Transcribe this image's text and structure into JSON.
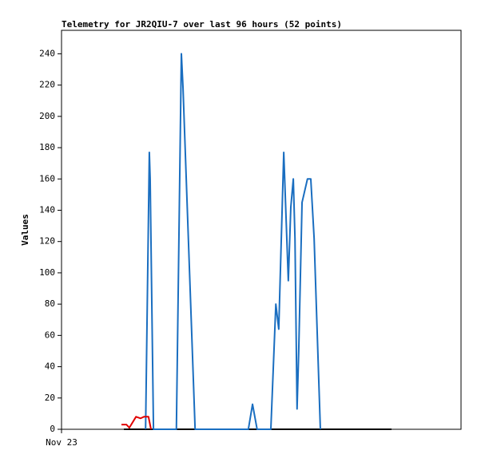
{
  "chart_data": {
    "type": "line",
    "title": "Telemetry for JR2QIU-7 over last 96 hours (52 points)",
    "y_label": "Values",
    "xlim": [
      0,
      96
    ],
    "xticks": [
      {
        "value": 0,
        "label": "Nov 23"
      }
    ],
    "ylim": [
      0,
      255
    ],
    "yticks": [
      0,
      20,
      40,
      60,
      80,
      100,
      120,
      140,
      160,
      180,
      200,
      220,
      240
    ],
    "grid": false,
    "series": [
      {
        "color": "#000000",
        "x": [
          15.0,
          79.3
        ],
        "values": [
          0,
          0
        ]
      },
      {
        "color": "#1a6ec0",
        "x": [
          20.2,
          21.1,
          21.3,
          22.1,
          27.6,
          28.8,
          29.2,
          32.1,
          44.9,
          45.9,
          47.0,
          50.3,
          51.5,
          52.2,
          53.4,
          54.0,
          54.5,
          55.1,
          55.7,
          56.1,
          56.6,
          57.0,
          57.8,
          59.1,
          59.9,
          60.7,
          62.2
        ],
        "values": [
          0,
          177,
          160,
          0,
          0,
          240,
          218,
          0,
          0,
          16,
          0,
          0,
          80,
          64,
          177,
          132,
          95,
          142,
          160,
          122,
          13,
          50,
          145,
          160,
          160,
          122,
          0
        ]
      },
      {
        "color": "#e00000",
        "x": [
          14.4,
          15.6,
          16.3,
          17.9,
          19.0,
          19.8,
          20.9,
          21.5
        ],
        "values": [
          3,
          3,
          1,
          8,
          7,
          8,
          8,
          0
        ]
      }
    ]
  }
}
